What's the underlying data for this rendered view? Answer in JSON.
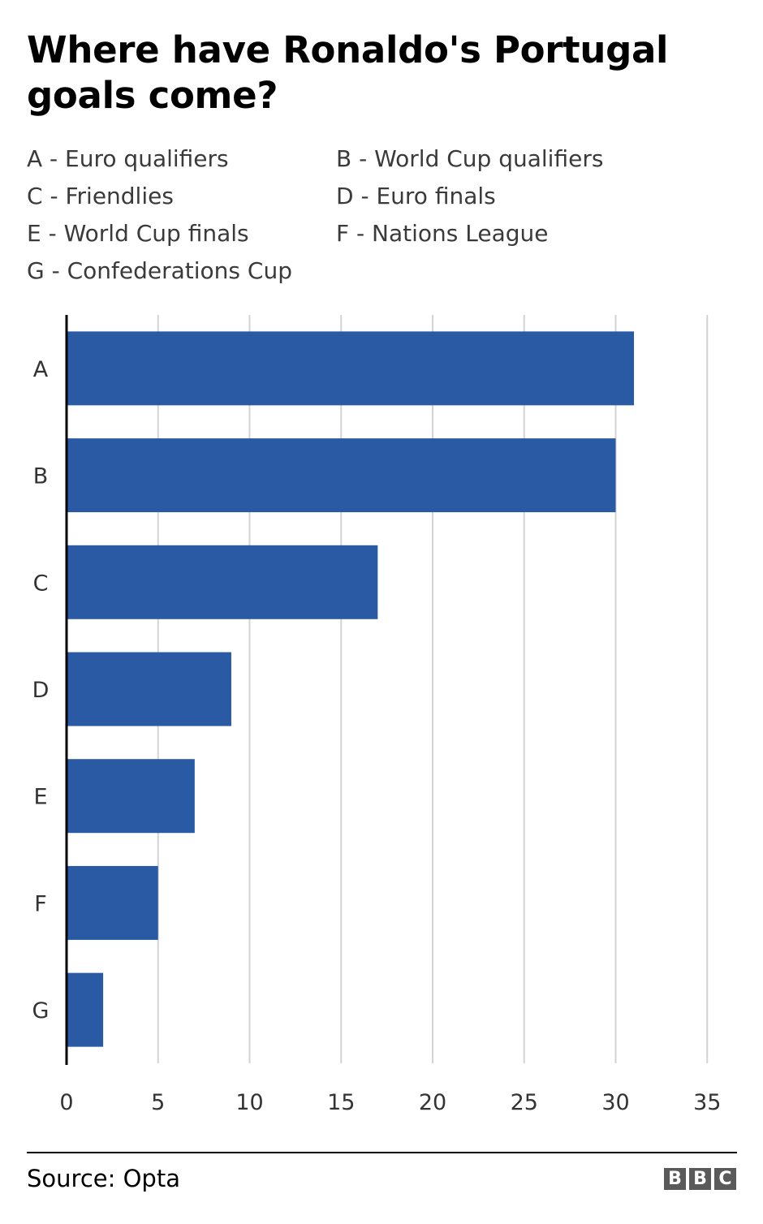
{
  "title": "Where have Ronaldo's Portugal goals come?",
  "legend": [
    {
      "label": "A - Euro qualifiers"
    },
    {
      "label": "B - World Cup qualifiers"
    },
    {
      "label": "C - Friendlies"
    },
    {
      "label": "D - Euro finals"
    },
    {
      "label": "E - World Cup finals"
    },
    {
      "label": "F - Nations League"
    },
    {
      "label": "G - Confederations Cup"
    }
  ],
  "colors": {
    "bar": "#2a5aa3",
    "grid": "#d3d3d3",
    "axis": "#000000"
  },
  "chart_data": {
    "type": "bar",
    "orientation": "horizontal",
    "title": "Where have Ronaldo's Portugal goals come?",
    "categories": [
      "A",
      "B",
      "C",
      "D",
      "E",
      "F",
      "G"
    ],
    "values": [
      31,
      30,
      17,
      9,
      7,
      5,
      2
    ],
    "xlim": [
      0,
      35
    ],
    "xticks": [
      0,
      5,
      10,
      15,
      20,
      25,
      30,
      35
    ],
    "xlabel": "",
    "ylabel": "",
    "grid": "vertical"
  },
  "footer": {
    "source": "Source: Opta",
    "logo": [
      "B",
      "B",
      "C"
    ]
  }
}
